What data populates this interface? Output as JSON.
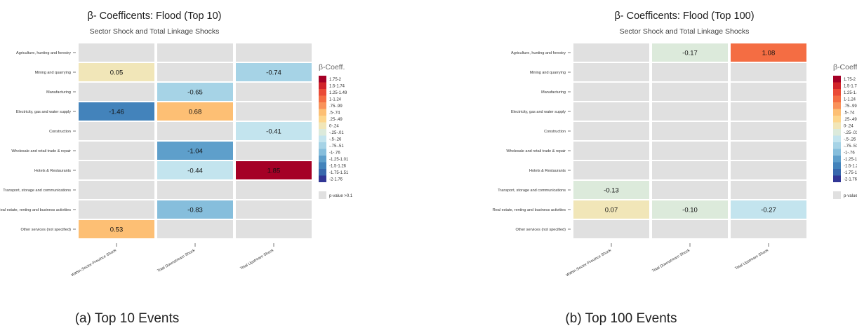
{
  "panels": [
    {
      "caption": "(a) Top 10 Events",
      "chart_data": {
        "type": "heatmap",
        "title": "β- Coefficents: Flood (Top 10)",
        "subtitle": "Sector Shock and Total Linkage Shocks",
        "row_labels": [
          "Agriculture, hunting and forestry",
          "Mining and quarrying",
          "Manufacturing",
          "Electricity, gas and water supply",
          "Construction",
          "Wholesale and retail trade & repair",
          "Hotels & Restaurants",
          "Transport, storage and communications",
          "Real estate, renting and business activities",
          "Other services (not specified)"
        ],
        "col_labels": [
          "Within-Sector-Province Shock",
          "Total Downstream Shock",
          "Total Upstream Shock"
        ],
        "values": [
          [
            null,
            null,
            null
          ],
          [
            0.05,
            null,
            -0.74
          ],
          [
            null,
            -0.65,
            null
          ],
          [
            -1.46,
            0.68,
            null
          ],
          [
            null,
            null,
            -0.41
          ],
          [
            null,
            -1.04,
            null
          ],
          [
            null,
            -0.44,
            1.85
          ],
          [
            null,
            null,
            null
          ],
          [
            null,
            -0.83,
            null
          ],
          [
            0.53,
            null,
            null
          ]
        ],
        "value_labels": [
          [
            null,
            null,
            null
          ],
          [
            "0.05",
            null,
            "-0.74"
          ],
          [
            null,
            "-0.65",
            null
          ],
          [
            "-1.46",
            "0.68",
            null
          ],
          [
            null,
            null,
            "-0.41"
          ],
          [
            null,
            "-1.04",
            null
          ],
          [
            null,
            "-0.44",
            "1.85"
          ],
          [
            null,
            null,
            null
          ],
          [
            null,
            "-0.83",
            null
          ],
          [
            "0.53",
            null,
            null
          ]
        ]
      }
    },
    {
      "caption": "(b) Top 100 Events",
      "chart_data": {
        "type": "heatmap",
        "title": "β- Coefficents: Flood (Top 100)",
        "subtitle": "Sector Shock and Total Linkage Shocks",
        "row_labels": [
          "Agriculture, hunting and forestry",
          "Mining and quarrying",
          "Manufacturing",
          "Electricity, gas and water supply",
          "Construction",
          "Wholesale and retail trade & repair",
          "Hotels & Restaurants",
          "Transport, storage and communications",
          "Real estate, renting and business activities",
          "Other services (not specified)"
        ],
        "col_labels": [
          "Within-Sector-Province Shock",
          "Total Downstream Shock",
          "Total Upstream Shock"
        ],
        "values": [
          [
            null,
            -0.17,
            1.08
          ],
          [
            null,
            null,
            null
          ],
          [
            null,
            null,
            null
          ],
          [
            null,
            null,
            null
          ],
          [
            null,
            null,
            null
          ],
          [
            null,
            null,
            null
          ],
          [
            null,
            null,
            null
          ],
          [
            -0.13,
            null,
            null
          ],
          [
            0.07,
            -0.1,
            -0.27
          ],
          [
            null,
            null,
            null
          ]
        ],
        "value_labels": [
          [
            null,
            "-0.17",
            "1.08"
          ],
          [
            null,
            null,
            null
          ],
          [
            null,
            null,
            null
          ],
          [
            null,
            null,
            null
          ],
          [
            null,
            null,
            null
          ],
          [
            null,
            null,
            null
          ],
          [
            null,
            null,
            null
          ],
          [
            "-0.13",
            null,
            null
          ],
          [
            "0.07",
            "-0.10",
            "-0.27"
          ],
          [
            null,
            null,
            null
          ]
        ]
      }
    }
  ],
  "legend": {
    "title": "β-Coeff.",
    "na_label": "p-value >0.1",
    "na_color": "#e0e0e0",
    "bins": [
      {
        "label": "1.75-2",
        "min": 1.75,
        "max": 2.0,
        "color": "#a50026"
      },
      {
        "label": "1.5-1.74",
        "min": 1.5,
        "max": 1.75,
        "color": "#d1242a"
      },
      {
        "label": "1.25-1.49",
        "min": 1.25,
        "max": 1.5,
        "color": "#ea4a36"
      },
      {
        "label": "1-1.24",
        "min": 1.0,
        "max": 1.25,
        "color": "#f46d43"
      },
      {
        "label": ".75-.99",
        "min": 0.75,
        "max": 1.0,
        "color": "#f9925a"
      },
      {
        "label": ".5-.74",
        "min": 0.5,
        "max": 0.75,
        "color": "#fdbf74"
      },
      {
        "label": ".25-.49",
        "min": 0.25,
        "max": 0.5,
        "color": "#fdd68d"
      },
      {
        "label": "0-.24",
        "min": 0.0,
        "max": 0.25,
        "color": "#f1e6b8"
      },
      {
        "label": "-.25-.01",
        "min": -0.25,
        "max": 0.0,
        "color": "#dceadb"
      },
      {
        "label": "-.5-.26",
        "min": -0.5,
        "max": -0.25,
        "color": "#c3e4ee"
      },
      {
        "label": "-.75-.51",
        "min": -0.75,
        "max": -0.5,
        "color": "#a6d3e6"
      },
      {
        "label": "-1-.76",
        "min": -1.0,
        "max": -0.75,
        "color": "#86bedc"
      },
      {
        "label": "-1.25-1.01",
        "min": -1.25,
        "max": -1.0,
        "color": "#5e9fcb"
      },
      {
        "label": "-1.5-1.26",
        "min": -1.5,
        "max": -1.25,
        "color": "#4383bb"
      },
      {
        "label": "-1.75-1.51",
        "min": -1.75,
        "max": -1.5,
        "color": "#3868ad"
      },
      {
        "label": "-2-1.76",
        "min": -2.0,
        "max": -1.75,
        "color": "#313695"
      }
    ]
  }
}
